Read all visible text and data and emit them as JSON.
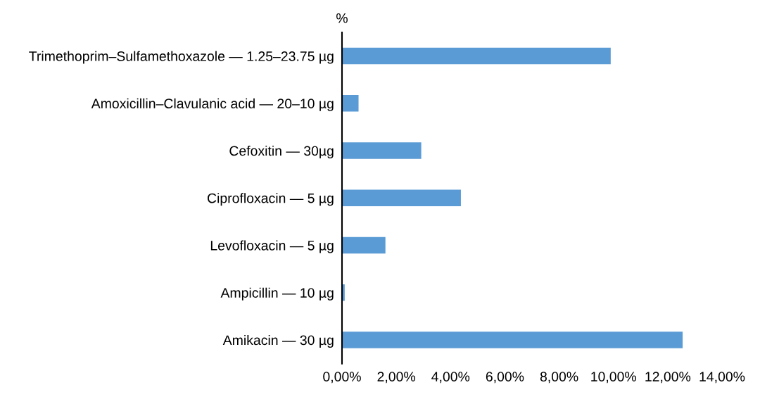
{
  "chart_data": {
    "type": "bar",
    "orientation": "horizontal",
    "ylabel": "%",
    "categories": [
      "Trimethoprim–Sulfamethoxazole — 1.25–23.75 µg",
      "Amoxicillin–Clavulanic acid — 20–10 µg",
      "Cefoxitin — 30µg",
      "Ciprofloxacin — 5 µg",
      "Levofloxacin — 5 µg",
      "Ampicillin — 10 µg",
      "Amikacin — 30 µg"
    ],
    "values": [
      9.9,
      0.61,
      2.92,
      4.38,
      1.6,
      0.1,
      12.55
    ],
    "color": "#5b9bd5",
    "xlim": [
      0,
      14
    ],
    "xticks": [
      {
        "value": 0,
        "label": "0,00%"
      },
      {
        "value": 2,
        "label": "2,00%"
      },
      {
        "value": 4,
        "label": "4,00%"
      },
      {
        "value": 6,
        "label": "6,00%"
      },
      {
        "value": 8,
        "label": "8,00%"
      },
      {
        "value": 10,
        "label": "10,00%"
      },
      {
        "value": 12,
        "label": "12,00%"
      },
      {
        "value": 14,
        "label": "14,00%"
      }
    ],
    "grid": false,
    "legend": false
  }
}
